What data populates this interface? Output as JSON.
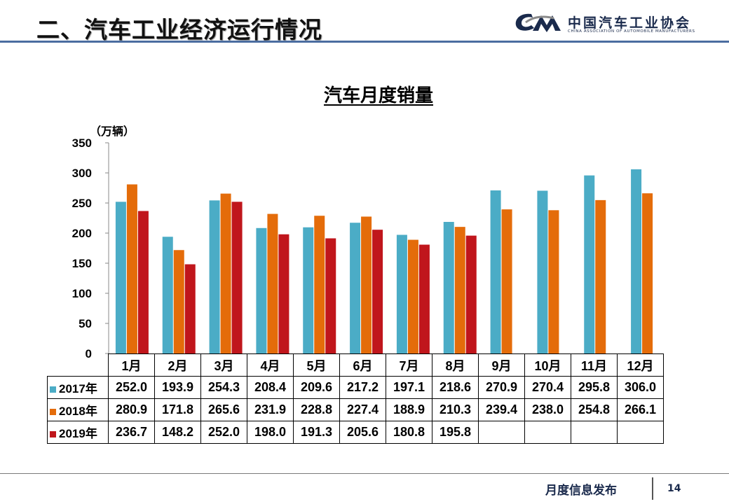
{
  "header": {
    "title": "二、汽车工业经济运行情况",
    "logo_text_cn": "中国汽车工业协会",
    "logo_text_en": "CHINA ASSOCIATION OF AUTOMOBILE MANUFACTURERS"
  },
  "chart_data": {
    "type": "bar",
    "title": "汽车月度销量",
    "ylabel": "（万辆）",
    "xlabel": "",
    "ylim": [
      0,
      350
    ],
    "yticks": [
      0,
      50,
      100,
      150,
      200,
      250,
      300,
      350
    ],
    "categories": [
      "1月",
      "2月",
      "3月",
      "4月",
      "5月",
      "6月",
      "7月",
      "8月",
      "9月",
      "10月",
      "11月",
      "12月"
    ],
    "series": [
      {
        "name": "2017年",
        "color": "#4bacc6",
        "values": [
          252.0,
          193.9,
          254.3,
          208.4,
          209.6,
          217.2,
          197.1,
          218.6,
          270.9,
          270.4,
          295.8,
          306.0
        ]
      },
      {
        "name": "2018年",
        "color": "#e46c0a",
        "values": [
          280.9,
          171.8,
          265.6,
          231.9,
          228.8,
          227.4,
          188.9,
          210.3,
          239.4,
          238.0,
          254.8,
          266.1
        ]
      },
      {
        "name": "2019年",
        "color": "#c0161c",
        "values": [
          236.7,
          148.2,
          252.0,
          198.0,
          191.3,
          205.6,
          180.8,
          195.8,
          null,
          null,
          null,
          null
        ]
      }
    ],
    "legend": "in data table below chart"
  },
  "footer": {
    "text": "月度信息发布",
    "page": "14"
  }
}
